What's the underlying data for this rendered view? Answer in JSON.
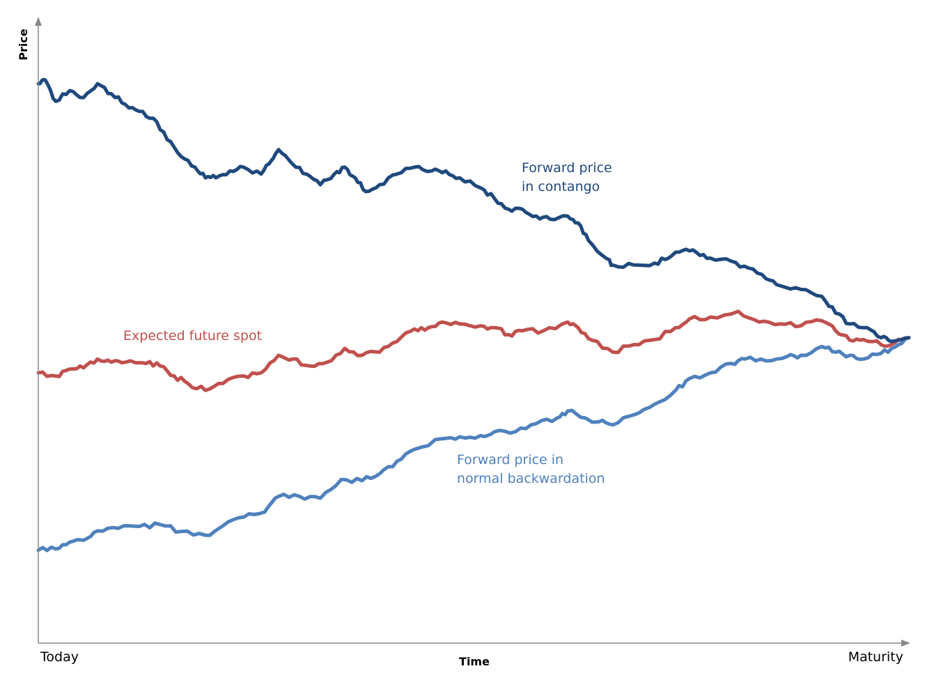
{
  "chart_data": {
    "type": "line",
    "title": "",
    "xlabel": "Time",
    "ylabel": "Price",
    "x_tick_labels": [
      "Today",
      "Maturity"
    ],
    "xlim": [
      0,
      100
    ],
    "ylim": [
      0,
      100
    ],
    "grid": false,
    "legend": "none",
    "annotations": {
      "contango": [
        "Forward price",
        "in contango"
      ],
      "spot": [
        "Expected future spot"
      ],
      "backwardation": [
        "Forward price in",
        "normal backwardation"
      ]
    },
    "series": [
      {
        "id": "contango",
        "color": "#1f497d",
        "x": [
          0,
          0.8,
          2,
          3.6,
          5.2,
          6.8,
          8.4,
          10,
          11.6,
          13.2,
          14.8,
          16.4,
          18,
          19.2,
          20.4,
          22,
          23.6,
          25.6,
          26.8,
          27.6,
          29.2,
          30.8,
          32.4,
          34,
          35.2,
          36.4,
          37.6,
          39.2,
          41.2,
          43.2,
          45.2,
          46.8,
          48.4,
          50.8,
          52.4,
          54,
          55.6,
          57.2,
          58.8,
          60.8,
          62,
          63.2,
          65.2,
          66,
          68.4,
          70.8,
          72.4,
          74,
          75.6,
          77.2,
          79.6,
          81.6,
          83.6,
          85.2,
          87.6,
          90,
          91.6,
          93.2,
          95.2,
          96.8,
          98,
          100
        ],
        "y": [
          89.2,
          89.8,
          86.4,
          88.1,
          87.0,
          89.2,
          87.6,
          85.9,
          84.8,
          83.7,
          80.3,
          77.6,
          75.9,
          74.2,
          74.2,
          75.3,
          75.9,
          74.8,
          77,
          78.7,
          76.4,
          74.8,
          73.1,
          74.8,
          75.9,
          74.2,
          72,
          73.1,
          74.8,
          75.9,
          75.3,
          75.3,
          74.2,
          72.6,
          70.9,
          69.2,
          69.2,
          68.1,
          67.6,
          68.1,
          67,
          64.2,
          61.4,
          60.3,
          60.3,
          60.6,
          61.4,
          62.6,
          62.3,
          61.4,
          60.9,
          59.8,
          58.1,
          57,
          56.4,
          55.3,
          52.6,
          50.9,
          50.3,
          48.7,
          48.1,
          48.7
        ]
      },
      {
        "id": "spot",
        "color": "#c0504d",
        "x": [
          0,
          2,
          3.6,
          5.2,
          6.8,
          8.4,
          10,
          12.4,
          14,
          15.6,
          17.2,
          19.2,
          21.2,
          23.6,
          25.6,
          27.6,
          29.2,
          31.2,
          33.2,
          35.2,
          37.2,
          39.2,
          41.2,
          43.2,
          44.8,
          46.4,
          48.4,
          50.8,
          52.4,
          54,
          55.6,
          58,
          60.8,
          62,
          63.6,
          66,
          68.4,
          70.8,
          73.2,
          74.8,
          77.2,
          80.4,
          82.8,
          85.2,
          87.6,
          90,
          91.6,
          93.2,
          94.8,
          96.8,
          98.4,
          100
        ],
        "y": [
          43.1,
          42.6,
          43.7,
          43.9,
          45.3,
          44.8,
          44.8,
          44.6,
          44.2,
          42.6,
          41.4,
          40.3,
          41.4,
          42.6,
          43.1,
          45.9,
          45.3,
          44.2,
          44.8,
          47,
          45.9,
          46.4,
          48.1,
          50.1,
          50.3,
          51.2,
          50.9,
          50.6,
          50.3,
          49.2,
          49.8,
          49.8,
          51.2,
          50.3,
          48.3,
          46.4,
          47.6,
          48.4,
          50.3,
          51.7,
          52,
          52.9,
          51.2,
          50.9,
          50.6,
          51.4,
          49.8,
          48.3,
          48.4,
          47.6,
          47.9,
          48.7
        ]
      },
      {
        "id": "backwardation",
        "color": "#4f81bd",
        "x": [
          0,
          2,
          3.6,
          5.2,
          6.8,
          9.2,
          11.6,
          14,
          16.4,
          19.2,
          21.2,
          23.6,
          26,
          27.6,
          30,
          32.4,
          34.8,
          37.2,
          39.2,
          41.2,
          43.2,
          46.4,
          48.4,
          50.8,
          52.4,
          54.8,
          57.2,
          59.6,
          60.8,
          62.8,
          64.4,
          66,
          68.4,
          70.8,
          73.2,
          74.8,
          77.2,
          79.6,
          81.2,
          83.6,
          86,
          87.6,
          90,
          91.6,
          93.2,
          94.8,
          96.8,
          98.4,
          100
        ],
        "y": [
          14.8,
          15,
          16.1,
          16.4,
          17.9,
          18.3,
          18.6,
          18.9,
          17.8,
          17.2,
          18.7,
          20.1,
          20.9,
          23.4,
          23.4,
          23.1,
          26.1,
          25.9,
          27,
          29,
          30.9,
          32.6,
          32.9,
          33.1,
          33.7,
          33.7,
          35,
          35.9,
          37,
          35.9,
          35.3,
          34.8,
          36.4,
          38.1,
          40.3,
          42.2,
          43.1,
          44.6,
          45.3,
          45,
          45.7,
          45.9,
          47.3,
          46.4,
          45.9,
          45.3,
          46.2,
          47.2,
          48.7
        ]
      }
    ]
  }
}
